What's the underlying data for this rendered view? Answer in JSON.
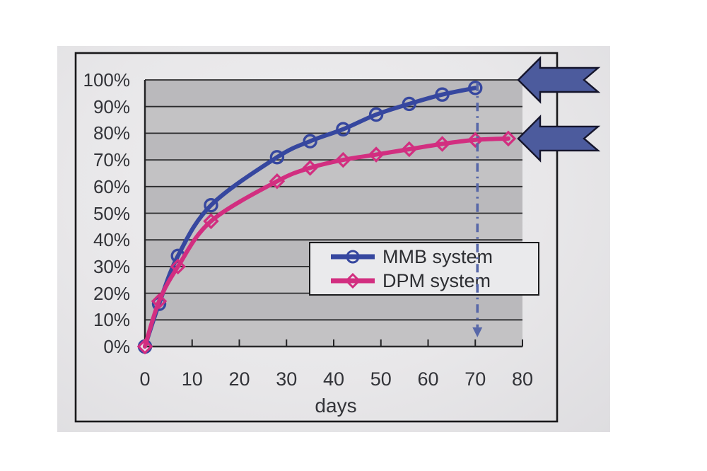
{
  "page": {
    "background_color": "#ffffff",
    "paper_color": "#e8e7e9"
  },
  "chart_data": {
    "type": "line",
    "title": "",
    "xlabel": "days",
    "ylabel": "",
    "xlim": [
      0,
      80
    ],
    "ylim": [
      0,
      100
    ],
    "x_ticks": [
      0,
      10,
      20,
      30,
      40,
      50,
      60,
      70,
      80
    ],
    "y_tick_values": [
      100,
      90,
      80,
      70,
      60,
      50,
      40,
      30,
      20,
      10,
      0
    ],
    "y_tick_labels": [
      "100%",
      "90%",
      "80%",
      "70%",
      "60%",
      "50%",
      "40%",
      "30%",
      "20%",
      "10%",
      "0%"
    ],
    "grid": "horizontal",
    "plot_background": "#bfbec0",
    "legend": {
      "position": "inside-lower-right",
      "border": true,
      "entries": [
        "MMB system",
        "DPM system"
      ]
    },
    "series": [
      {
        "name": "MMB system",
        "color": "#36479f",
        "marker": "circle",
        "x": [
          0,
          3,
          7,
          14,
          28,
          35,
          42,
          49,
          56,
          63,
          70
        ],
        "y": [
          0,
          16,
          34,
          53,
          71,
          77,
          81.5,
          87,
          91,
          94.5,
          97
        ]
      },
      {
        "name": "DPM system",
        "color": "#d22e80",
        "marker": "diamond",
        "x": [
          0,
          3,
          7,
          14,
          28,
          35,
          42,
          49,
          56,
          63,
          70,
          77
        ],
        "y": [
          0,
          17,
          30,
          47,
          62,
          67,
          70,
          72,
          74,
          76,
          77.5,
          78
        ]
      }
    ],
    "annotations": {
      "vertical_dashdot_line": {
        "at_day": 70,
        "from_percent": 99,
        "to_percent": 4,
        "arrowhead": "down",
        "color": "#5767a8"
      },
      "block_arrows": [
        {
          "direction": "left",
          "tip_at_percent": 100
        },
        {
          "direction": "left",
          "tip_at_percent": 78
        }
      ],
      "block_arrow_fill": "#4c5b9d",
      "block_arrow_outline": "#15152c"
    }
  }
}
